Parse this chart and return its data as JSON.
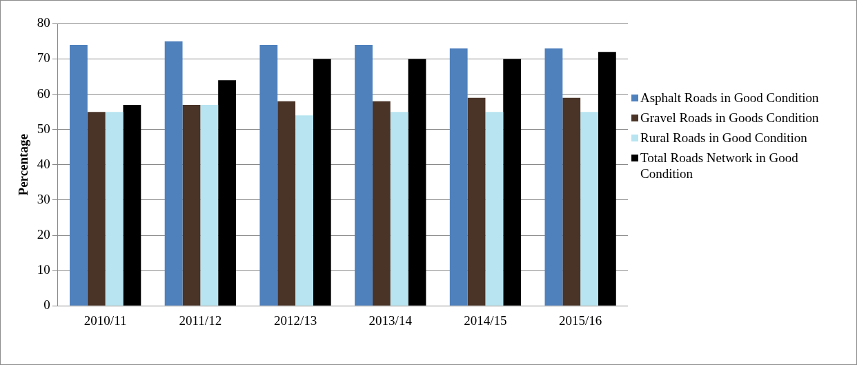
{
  "chart_data": {
    "type": "bar",
    "ylabel": "Percentage",
    "categories": [
      "2010/11",
      "2011/12",
      "2012/13",
      "2013/14",
      "2014/15",
      "2015/16"
    ],
    "series": [
      {
        "name": "Asphalt Roads in Good Condition",
        "color": "#4f81bd",
        "values": [
          74,
          75,
          74,
          74,
          73,
          73
        ]
      },
      {
        "name": "Gravel Roads in Goods Condition",
        "color": "#4a3428",
        "values": [
          55,
          57,
          58,
          58,
          59,
          59
        ]
      },
      {
        "name": "Rural Roads in Good Condition",
        "color": "#b7e4f0",
        "values": [
          55,
          57,
          54,
          55,
          55,
          55
        ]
      },
      {
        "name": "Total Roads Network in Good Condition",
        "color": "#000000",
        "values": [
          57,
          64,
          70,
          70,
          70,
          72
        ]
      }
    ],
    "ylim": [
      0,
      80
    ],
    "yticks": [
      0,
      10,
      20,
      30,
      40,
      50,
      60,
      70,
      80
    ],
    "grid": "y",
    "legend": "right"
  }
}
